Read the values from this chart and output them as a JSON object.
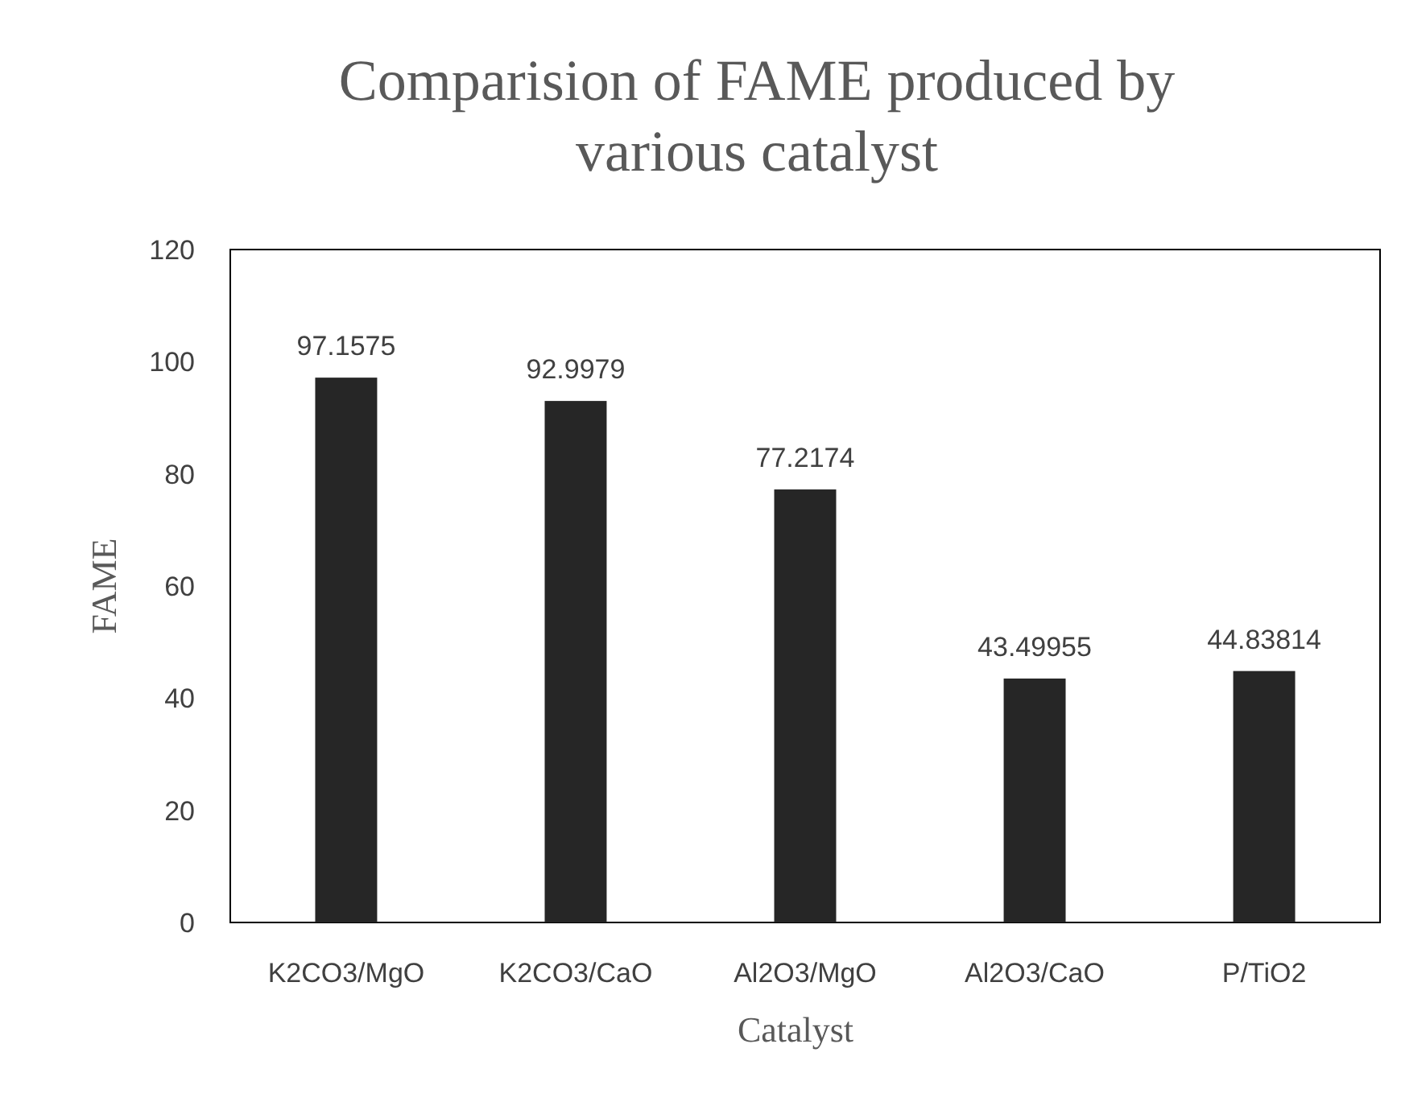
{
  "chart_data": {
    "type": "bar",
    "title": "Comparision of FAME produced by various catalyst",
    "xlabel": "Catalyst",
    "ylabel": "FAME",
    "categories": [
      "K2CO3/MgO",
      "K2CO3/CaO",
      "Al2O3/MgO",
      "Al2O3/CaO",
      "P/TiO2"
    ],
    "values": [
      97.1575,
      92.9979,
      77.2174,
      43.49955,
      44.83814
    ],
    "color": "#262626",
    "data_labels": true,
    "ylim": [
      0,
      120
    ],
    "yticks": [
      0,
      20,
      40,
      60,
      80,
      100,
      120
    ],
    "grid": false
  }
}
